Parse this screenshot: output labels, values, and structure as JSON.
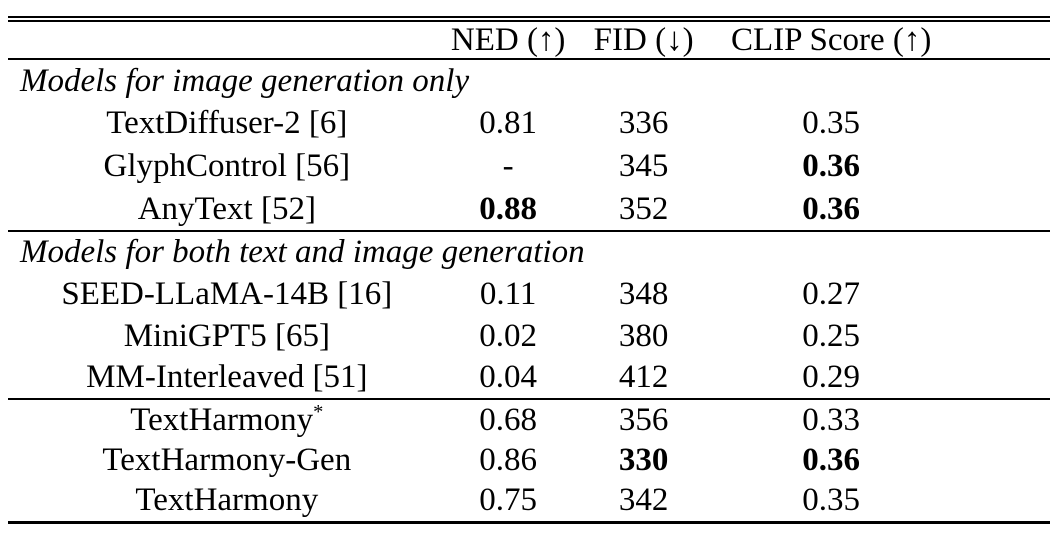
{
  "table": {
    "header": {
      "model_col": "",
      "metric_cols": [
        "NED (↑)",
        "FID (↓)",
        "CLIP Score (↑)"
      ]
    },
    "sections": [
      {
        "title": "Models for image generation only",
        "rows": [
          {
            "name": "TextDiffuser-2 [6]",
            "ned": "0.81",
            "fid": "336",
            "clip": "0.35",
            "bold": []
          },
          {
            "name": "GlyphControl [56]",
            "ned": "-",
            "fid": "345",
            "clip": "0.36",
            "bold": [
              "clip"
            ]
          },
          {
            "name": "AnyText [52]",
            "ned": "0.88",
            "fid": "352",
            "clip": "0.36",
            "bold": [
              "ned",
              "clip"
            ]
          }
        ]
      },
      {
        "title": "Models for both text and image generation",
        "rows": [
          {
            "name": "SEED-LLaMA-14B [16]",
            "ned": "0.11",
            "fid": "348",
            "clip": "0.27",
            "bold": []
          },
          {
            "name": "MiniGPT5 [65]",
            "ned": "0.02",
            "fid": "380",
            "clip": "0.25",
            "bold": []
          },
          {
            "name": "MM-Interleaved [51]",
            "ned": "0.04",
            "fid": "412",
            "clip": "0.29",
            "bold": []
          }
        ]
      },
      {
        "title": null,
        "rows": [
          {
            "name": "TextHarmony",
            "sup": "*",
            "ned": "0.68",
            "fid": "356",
            "clip": "0.33",
            "bold": []
          },
          {
            "name": "TextHarmony-Gen",
            "ned": "0.86",
            "fid": "330",
            "clip": "0.36",
            "bold": [
              "fid",
              "clip"
            ]
          },
          {
            "name": "TextHarmony",
            "ned": "0.75",
            "fid": "342",
            "clip": "0.35",
            "bold": []
          }
        ]
      }
    ],
    "colors": {
      "text": "#000000",
      "background": "#ffffff",
      "rule": "#000000"
    }
  }
}
